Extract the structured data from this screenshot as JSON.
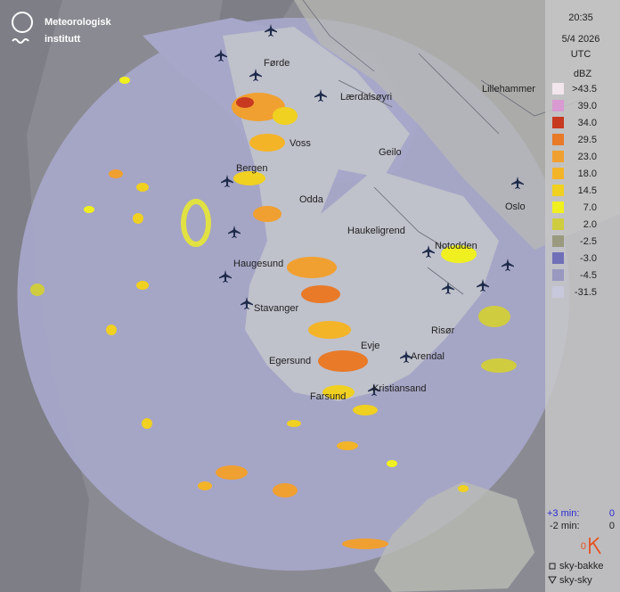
{
  "logo": {
    "line1": "Meteorologisk",
    "line2": "institutt"
  },
  "time": "20:35",
  "date": "5/4 2026",
  "timezone": "UTC",
  "legend": {
    "unit": "dBZ",
    "items": [
      {
        "label": ">43.5",
        "color": "#f2e6ec"
      },
      {
        "label": "39.0",
        "color": "#d89ad0"
      },
      {
        "label": "34.0",
        "color": "#c83a20"
      },
      {
        "label": "29.5",
        "color": "#e87a28"
      },
      {
        "label": "23.0",
        "color": "#f0a030"
      },
      {
        "label": "18.0",
        "color": "#f4b428"
      },
      {
        "label": "14.5",
        "color": "#f0d020"
      },
      {
        "label": "7.0",
        "color": "#f0f020"
      },
      {
        "label": "2.0",
        "color": "#d0cc40"
      },
      {
        "label": "-2.5",
        "color": "#9a9a80"
      },
      {
        "label": "-3.0",
        "color": "#7070b8"
      },
      {
        "label": "-4.5",
        "color": "#9898c0"
      },
      {
        "label": "-31.5",
        "color": "#c8c8dc"
      }
    ]
  },
  "places": [
    "Førde",
    "Lærdalsøyri",
    "Lillehammer",
    "Voss",
    "Geilo",
    "Bergen",
    "Odda",
    "Oslo",
    "Haukeligrend",
    "Notodden",
    "Haugesund",
    "Stavanger",
    "Risør",
    "Evje",
    "Egersund",
    "Arendal",
    "Farsund",
    "Kristiansand"
  ],
  "lightning": {
    "plus3_label": "+3 min:",
    "plus3_count": 0,
    "minus2_label": "-2 min:",
    "minus2_count": 0,
    "total": 0,
    "ground_label": "sky-bakke",
    "cloud_label": "sky-sky"
  }
}
